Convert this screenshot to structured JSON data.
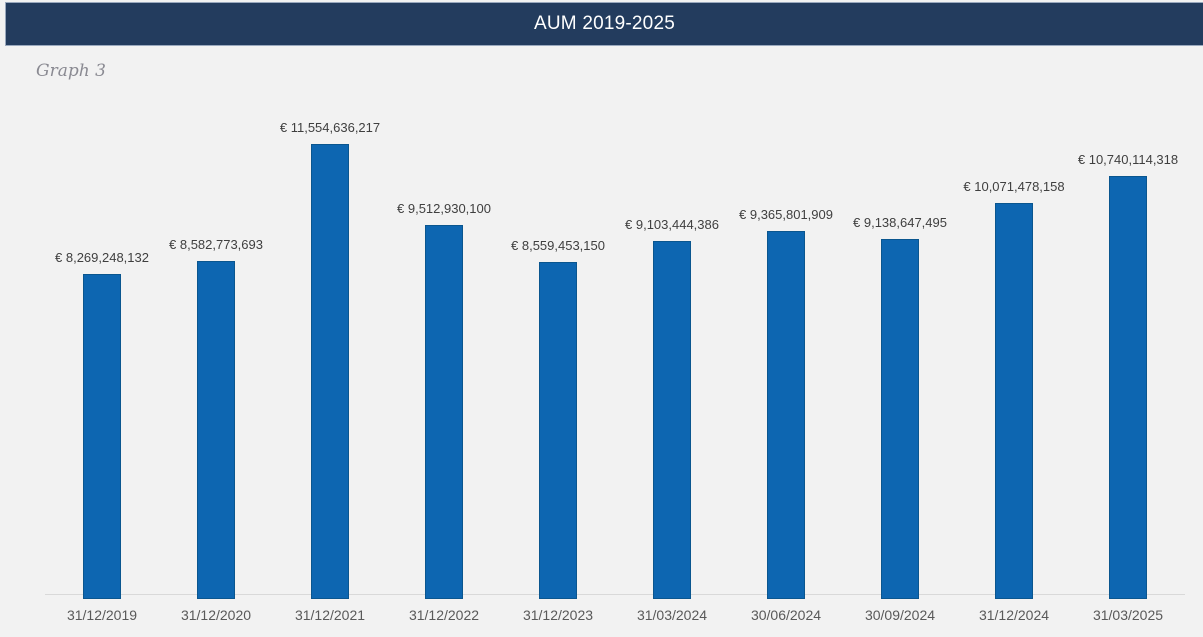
{
  "header": {
    "title": "AUM 2019-2025",
    "bg_color": "#233C5E",
    "text_color": "#FFFFFF"
  },
  "graph_caption": "Graph 3",
  "chart_data": {
    "type": "bar",
    "title": "AUM 2019-2025",
    "categories": [
      "31/12/2019",
      "31/12/2020",
      "31/12/2021",
      "31/12/2022",
      "31/12/2023",
      "31/03/2024",
      "30/06/2024",
      "30/09/2024",
      "31/12/2024",
      "31/03/2025"
    ],
    "values": [
      8269248132,
      8582773693,
      11554636217,
      9512930100,
      8559453150,
      9103444386,
      9365801909,
      9138647495,
      10071478158,
      10740114318
    ],
    "value_labels": [
      "€ 8,269,248,132",
      "€ 8,582,773,693",
      "€ 11,554,636,217",
      "€ 9,512,930,100",
      "€ 8,559,453,150",
      "€ 9,103,444,386",
      "€ 9,365,801,909",
      "€ 9,138,647,495",
      "€ 10,071,478,158",
      "€ 10,740,114,318"
    ],
    "xlabel": "",
    "ylabel": "",
    "ylim": [
      0,
      12000000000
    ],
    "grid": false,
    "legend": false,
    "bar_color": "#0D66B1",
    "bar_border_color": "#0A568F",
    "axis_line_color": "#D9D9D9",
    "value_label_color": "#3F3F3F",
    "tick_label_color": "#595959",
    "background_color": "#F2F2F2"
  }
}
